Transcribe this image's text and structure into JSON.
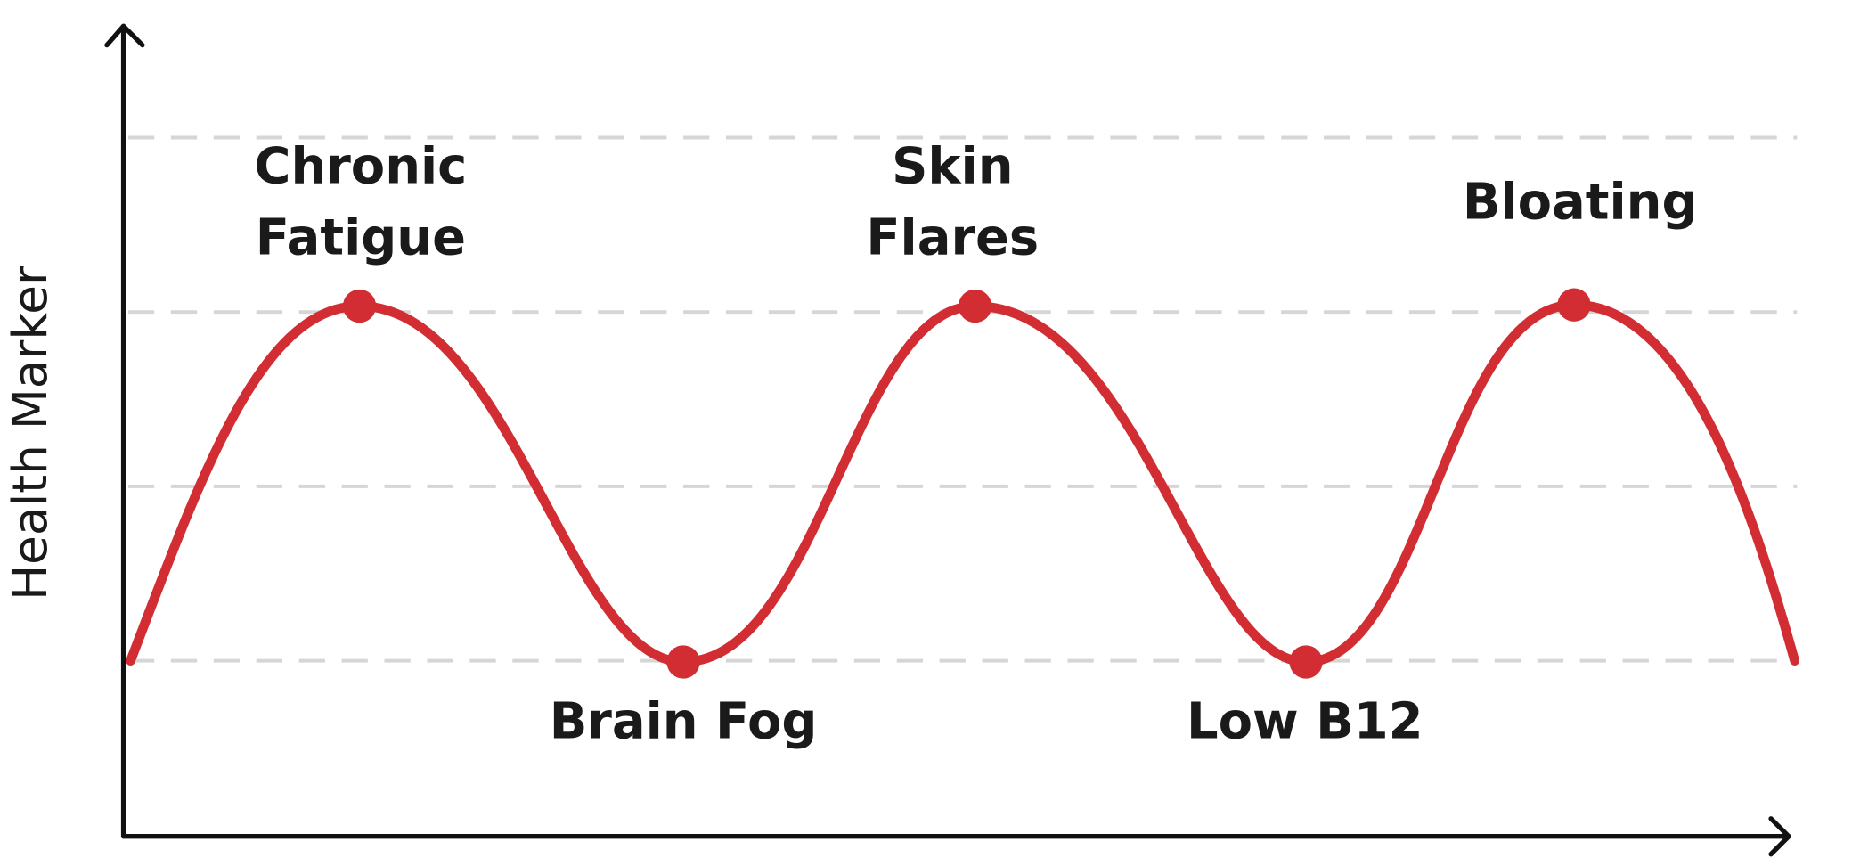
{
  "y_axis_label": "Health Marker",
  "points": [
    {
      "lines": [
        "Chronic",
        "Fatigue"
      ]
    },
    {
      "lines": [
        "Brain Fog"
      ]
    },
    {
      "lines": [
        "Skin",
        "Flares"
      ]
    },
    {
      "lines": [
        "Low B12"
      ]
    },
    {
      "lines": [
        "Bloating"
      ]
    }
  ]
}
